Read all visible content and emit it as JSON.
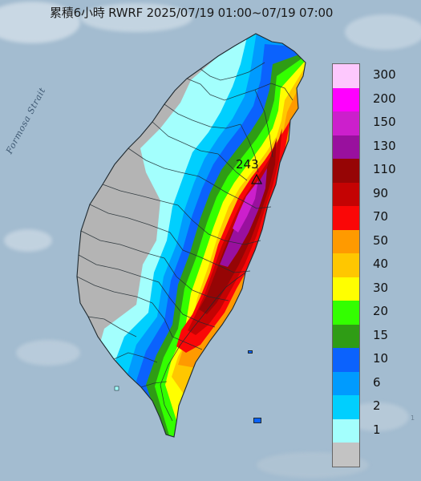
{
  "title": "累積6小時 RWRF 2025/07/19 01:00~07/19 07:00",
  "strait_label": "Formosa Strait",
  "max_rain": {
    "value": "243"
  },
  "colors": {
    "sea": "#a3bcd0",
    "land_no_rain": "#b4b4b4",
    "boundary": "#1f2a30"
  },
  "legend": {
    "items": [
      {
        "label": "300",
        "color": "#fdc8fd"
      },
      {
        "label": "200",
        "color": "#ff00ff"
      },
      {
        "label": "150",
        "color": "#cc1fcc"
      },
      {
        "label": "130",
        "color": "#99109e"
      },
      {
        "label": "110",
        "color": "#960505"
      },
      {
        "label": "90",
        "color": "#c40303"
      },
      {
        "label": "70",
        "color": "#fa0707"
      },
      {
        "label": "50",
        "color": "#ff9a00"
      },
      {
        "label": "40",
        "color": "#ffc700"
      },
      {
        "label": "30",
        "color": "#ffff00"
      },
      {
        "label": "20",
        "color": "#33ff00"
      },
      {
        "label": "15",
        "color": "#2f9c15"
      },
      {
        "label": "10",
        "color": "#0b62fd"
      },
      {
        "label": "6",
        "color": "#009bfe"
      },
      {
        "label": "2",
        "color": "#00cffe"
      },
      {
        "label": "1",
        "color": "#a3fffd"
      },
      {
        "label": "",
        "color": "#c3c3c3"
      }
    ]
  }
}
